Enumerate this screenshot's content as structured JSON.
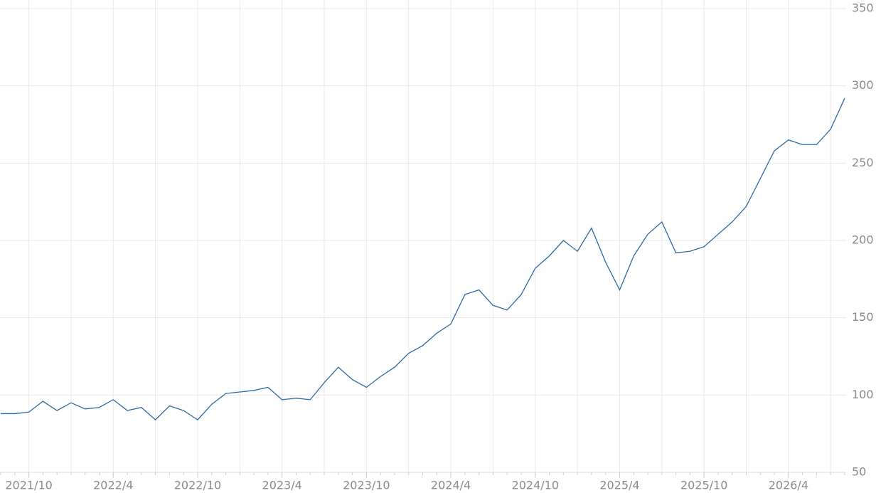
{
  "chart_data": {
    "type": "line",
    "x": [
      "2021/8",
      "2021/9",
      "2021/10",
      "2021/11",
      "2021/12",
      "2022/1",
      "2022/2",
      "2022/3",
      "2022/4",
      "2022/5",
      "2022/6",
      "2022/7",
      "2022/8",
      "2022/9",
      "2022/10",
      "2022/11",
      "2022/12",
      "2023/1",
      "2023/2",
      "2023/3",
      "2023/4",
      "2023/5",
      "2023/6",
      "2023/7",
      "2023/8",
      "2023/9",
      "2023/10",
      "2023/11",
      "2023/12",
      "2024/1",
      "2024/2",
      "2024/3",
      "2024/4",
      "2024/5",
      "2024/6",
      "2024/7",
      "2024/8",
      "2024/9",
      "2024/10",
      "2024/11",
      "2024/12",
      "2025/1",
      "2025/2",
      "2025/3",
      "2025/4",
      "2025/5",
      "2025/6",
      "2025/7",
      "2025/8",
      "2025/9",
      "2025/10",
      "2025/11",
      "2025/12",
      "2026/1",
      "2026/2",
      "2026/3",
      "2026/4",
      "2026/5",
      "2026/6",
      "2026/7",
      "2026/8"
    ],
    "series": [
      {
        "color": "#2d6aa6",
        "values": [
          88,
          88,
          89,
          96,
          90,
          95,
          91,
          92,
          97,
          90,
          92,
          84,
          93,
          90,
          84,
          94,
          101,
          102,
          103,
          105,
          97,
          98,
          97,
          108,
          118,
          110,
          105,
          112,
          118,
          127,
          132,
          140,
          146,
          165,
          168,
          158,
          155,
          165,
          182,
          190,
          200,
          193,
          208,
          186,
          168,
          190,
          204,
          212,
          192,
          193,
          196,
          204,
          212,
          222,
          240,
          258,
          265,
          262,
          262,
          272,
          292
        ]
      }
    ],
    "xticks": [
      "2021/10",
      "2022/4",
      "2022/10",
      "2023/4",
      "2023/10",
      "2024/4",
      "2024/10",
      "2025/4",
      "2025/10",
      "2026/4"
    ],
    "ylim": [
      50,
      350
    ],
    "yticks": [
      50,
      100,
      150,
      200,
      250,
      300,
      350
    ],
    "grid": true
  }
}
